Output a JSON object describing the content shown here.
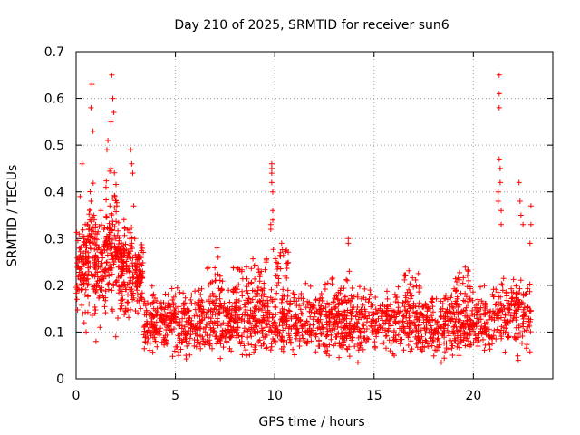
{
  "chart_data": {
    "type": "scatter",
    "title": "Day 210 of 2025, SRMTID for receiver sun6",
    "xlabel": "GPS time / hours",
    "ylabel": "SRMTID / TECUs",
    "xlim": [
      0,
      24
    ],
    "ylim": [
      0,
      0.7
    ],
    "xticks": [
      0,
      5,
      10,
      15,
      20
    ],
    "yticks": [
      0,
      0.1,
      0.2,
      0.3,
      0.4,
      0.5,
      0.6,
      0.7
    ],
    "xtick_labels": [
      "0",
      "5",
      "10",
      "15",
      "20"
    ],
    "ytick_labels": [
      "0",
      "0.1",
      "0.2",
      "0.3",
      "0.4",
      "0.5",
      "0.6",
      "0.7"
    ],
    "grid": true,
    "marker": "+",
    "marker_color": "#ff0000",
    "series": [
      {
        "name": "SRMTID",
        "points_note": "representative sample of the dense point cloud",
        "x": [
          0.05,
          0.1,
          0.15,
          0.2,
          0.25,
          0.3,
          0.35,
          0.4,
          0.45,
          0.5,
          0.55,
          0.6,
          0.65,
          0.7,
          0.75,
          0.8,
          0.85,
          0.9,
          0.95,
          1.0,
          1.05,
          1.1,
          1.15,
          1.2,
          1.25,
          1.3,
          1.35,
          1.4,
          1.45,
          1.5,
          1.55,
          1.6,
          1.65,
          1.7,
          1.75,
          1.8,
          1.85,
          1.9,
          1.95,
          2.0,
          2.05,
          2.1,
          2.15,
          2.2,
          2.25,
          2.3,
          2.35,
          2.4,
          2.45,
          2.5,
          2.55,
          2.6,
          2.65,
          2.7,
          2.75,
          2.8,
          2.85,
          2.9,
          2.95,
          3.0,
          3.05,
          3.1,
          3.15,
          3.2,
          3.25,
          3.3,
          0.8,
          0.75,
          0.85,
          1.8,
          1.85,
          1.9,
          1.75,
          0.3,
          0.2,
          1.55,
          1.6,
          2.8,
          2.85,
          2.75,
          0.4,
          0.5,
          2.1,
          2.0,
          1.0,
          1.2
        ],
        "y": [
          0.2,
          0.24,
          0.31,
          0.28,
          0.19,
          0.22,
          0.26,
          0.3,
          0.18,
          0.21,
          0.33,
          0.27,
          0.16,
          0.24,
          0.38,
          0.29,
          0.22,
          0.35,
          0.14,
          0.26,
          0.31,
          0.2,
          0.28,
          0.24,
          0.36,
          0.19,
          0.27,
          0.32,
          0.23,
          0.41,
          0.25,
          0.3,
          0.22,
          0.37,
          0.45,
          0.28,
          0.33,
          0.26,
          0.39,
          0.3,
          0.21,
          0.28,
          0.24,
          0.19,
          0.27,
          0.22,
          0.17,
          0.25,
          0.2,
          0.15,
          0.23,
          0.18,
          0.26,
          0.32,
          0.21,
          0.29,
          0.24,
          0.37,
          0.3,
          0.2,
          0.24,
          0.18,
          0.22,
          0.16,
          0.15,
          0.17,
          0.63,
          0.58,
          0.53,
          0.65,
          0.6,
          0.57,
          0.55,
          0.46,
          0.39,
          0.49,
          0.51,
          0.46,
          0.44,
          0.49,
          0.12,
          0.1,
          0.13,
          0.09,
          0.08,
          0.11
        ]
      }
    ],
    "spike_points": {
      "x": [
        9.85,
        9.85,
        9.85,
        9.85,
        9.9,
        9.9,
        9.9,
        9.8,
        9.8,
        13.7,
        13.7,
        13.75,
        13.65,
        7.1,
        7.15,
        10.35,
        10.3,
        21.3,
        21.3,
        21.3,
        21.3,
        21.35,
        21.35,
        21.25,
        21.25,
        21.4,
        21.4,
        22.3,
        22.35,
        22.4,
        22.5,
        22.9,
        22.9,
        22.85
      ],
      "y": [
        0.46,
        0.45,
        0.44,
        0.42,
        0.4,
        0.36,
        0.34,
        0.33,
        0.32,
        0.3,
        0.29,
        0.23,
        0.21,
        0.28,
        0.26,
        0.29,
        0.27,
        0.65,
        0.61,
        0.58,
        0.47,
        0.45,
        0.42,
        0.4,
        0.38,
        0.36,
        0.33,
        0.42,
        0.38,
        0.35,
        0.33,
        0.37,
        0.33,
        0.29
      ]
    },
    "background_bands": [
      {
        "x_from": 3.4,
        "x_to": 21.0,
        "y_center": 0.12,
        "y_spread": 0.05
      },
      {
        "x_from": 21.0,
        "x_to": 22.9,
        "y_center": 0.14,
        "y_spread": 0.06
      }
    ]
  }
}
